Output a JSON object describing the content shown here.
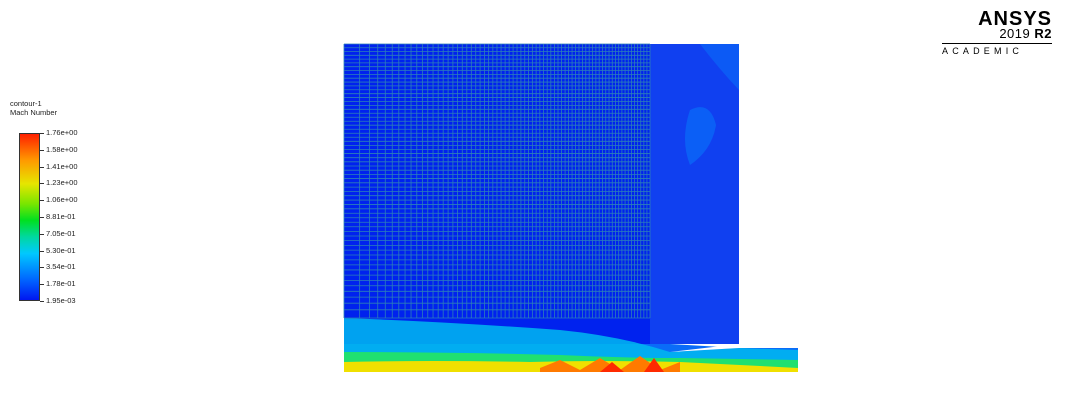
{
  "legend": {
    "title_line1": "contour-1",
    "title_line2": "Mach Number",
    "labels": [
      "1.76e+00",
      "1.58e+00",
      "1.41e+00",
      "1.23e+00",
      "1.06e+00",
      "8.81e-01",
      "7.05e-01",
      "5.30e-01",
      "3.54e-01",
      "1.78e-01",
      "1.95e-03"
    ],
    "min": 0.00195,
    "max": 1.76,
    "colors": {
      "low": "#0016f0",
      "mid": "#00e020",
      "high": "#ff2000"
    }
  },
  "logo": {
    "brand": "ANSYS",
    "year": "2019",
    "release": "R2",
    "edition": "ACADEMIC"
  }
}
